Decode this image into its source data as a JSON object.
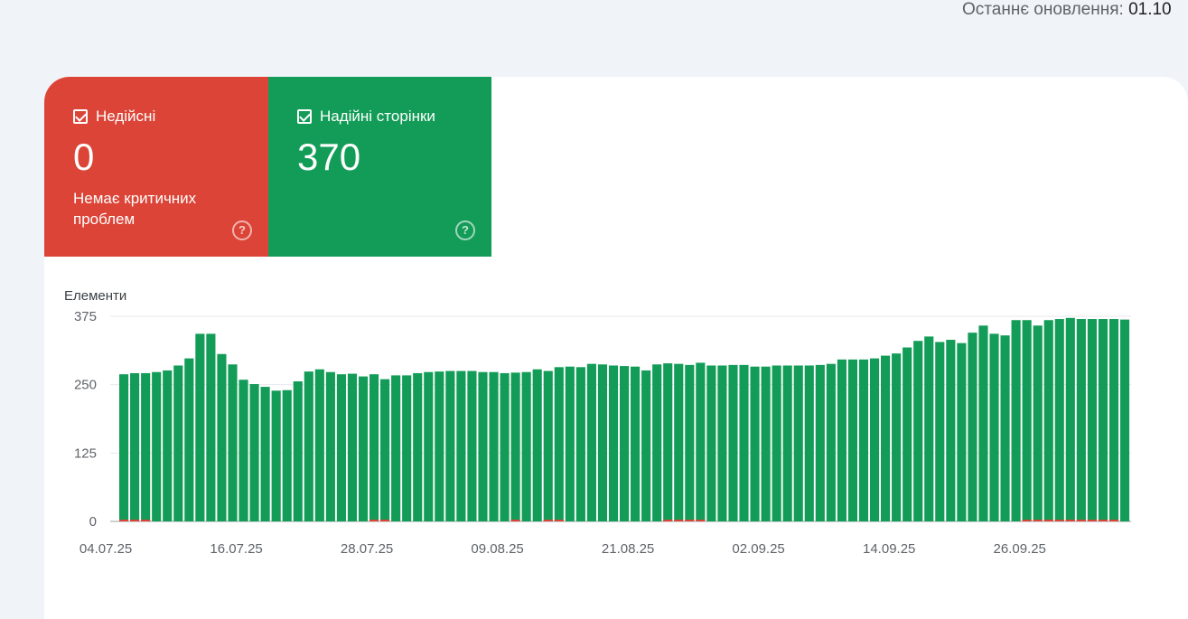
{
  "header": {
    "last_update_label": "Останнє оновлення:",
    "last_update_value": "01.10"
  },
  "tiles": {
    "invalid": {
      "label": "Недійсні",
      "value": "0",
      "description": "Немає критичних проблем",
      "color": "#db4437"
    },
    "valid": {
      "label": "Надійні сторінки",
      "value": "370",
      "color": "#129c57"
    }
  },
  "chart_data": {
    "type": "bar",
    "ylabel": "Елементи",
    "ylim": [
      0,
      375
    ],
    "yticks": [
      0,
      125,
      250,
      375
    ],
    "xticks": [
      "04.07.25",
      "16.07.25",
      "28.07.25",
      "09.08.25",
      "21.08.25",
      "02.09.25",
      "14.09.25",
      "26.09.25"
    ],
    "grid": true,
    "series": [
      {
        "color": "#129c57",
        "values": [
          269,
          271,
          271,
          273,
          276,
          285,
          298,
          343,
          343,
          306,
          287,
          259,
          251,
          246,
          239,
          240,
          256,
          274,
          278,
          273,
          269,
          270,
          265,
          269,
          260,
          267,
          267,
          271,
          273,
          274,
          275,
          275,
          275,
          273,
          273,
          271,
          272,
          273,
          278,
          275,
          282,
          283,
          282,
          288,
          287,
          285,
          284,
          283,
          276,
          287,
          289,
          288,
          286,
          290,
          285,
          285,
          286,
          286,
          283,
          283,
          285,
          285,
          285,
          285,
          286,
          288,
          296,
          296,
          296,
          298,
          303,
          307,
          318,
          330,
          338,
          328,
          332,
          326,
          345,
          358,
          343,
          340,
          368,
          368,
          358,
          368,
          370,
          372,
          370,
          370,
          370,
          370,
          369
        ]
      },
      {
        "color": "#db4437",
        "values": [
          2,
          2,
          2,
          0,
          0,
          0,
          0,
          0,
          0,
          0,
          0,
          0,
          0,
          0,
          0,
          0,
          0,
          0,
          0,
          0,
          0,
          0,
          0,
          2,
          2,
          0,
          0,
          0,
          0,
          0,
          0,
          0,
          0,
          0,
          0,
          0,
          2,
          0,
          0,
          2,
          2,
          0,
          0,
          0,
          0,
          0,
          0,
          0,
          0,
          0,
          2,
          2,
          2,
          2,
          0,
          0,
          0,
          0,
          0,
          0,
          0,
          0,
          0,
          0,
          0,
          0,
          0,
          0,
          0,
          0,
          0,
          0,
          0,
          0,
          0,
          0,
          0,
          0,
          0,
          0,
          0,
          0,
          0,
          2,
          2,
          2,
          2,
          2,
          2,
          2,
          2,
          2,
          0
        ]
      }
    ]
  }
}
